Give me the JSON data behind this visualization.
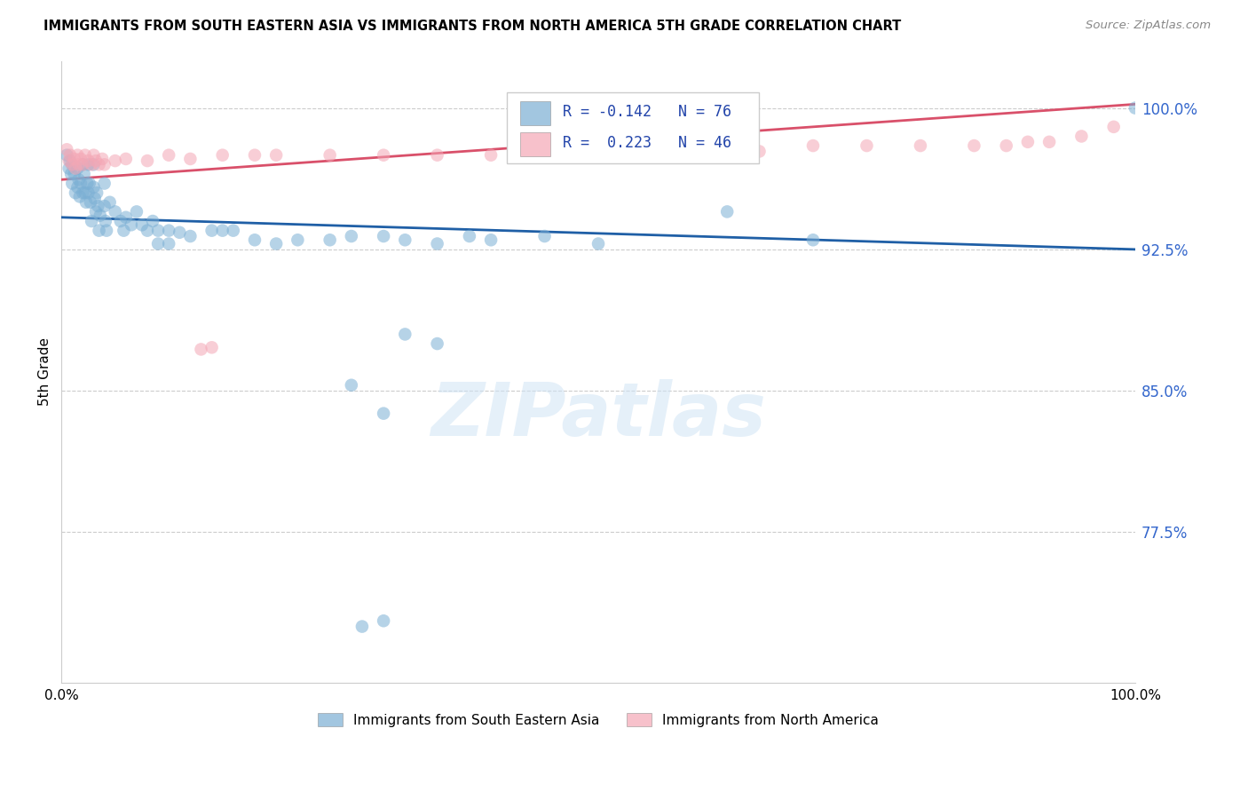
{
  "title": "IMMIGRANTS FROM SOUTH EASTERN ASIA VS IMMIGRANTS FROM NORTH AMERICA 5TH GRADE CORRELATION CHART",
  "source": "Source: ZipAtlas.com",
  "ylabel": "5th Grade",
  "ytick_labels": [
    "100.0%",
    "92.5%",
    "85.0%",
    "77.5%"
  ],
  "ytick_values": [
    1.0,
    0.925,
    0.85,
    0.775
  ],
  "xlim": [
    0.0,
    1.0
  ],
  "ylim": [
    0.695,
    1.025
  ],
  "legend_label1": "Immigrants from South Eastern Asia",
  "legend_label2": "Immigrants from North America",
  "R1": -0.142,
  "N1": 76,
  "R2": 0.223,
  "N2": 46,
  "color_blue": "#7BAFD4",
  "color_pink": "#F4A7B5",
  "color_line_blue": "#1F5FA6",
  "color_line_pink": "#D9506A",
  "watermark_text": "ZIPatlas",
  "blue_trendline": [
    0.0,
    0.942,
    1.0,
    0.925
  ],
  "pink_trendline": [
    0.0,
    0.962,
    1.0,
    1.002
  ],
  "blue_x": [
    0.005,
    0.007,
    0.008,
    0.009,
    0.01,
    0.01,
    0.012,
    0.013,
    0.015,
    0.015,
    0.016,
    0.017,
    0.018,
    0.02,
    0.02,
    0.021,
    0.022,
    0.023,
    0.024,
    0.025,
    0.025,
    0.026,
    0.027,
    0.028,
    0.03,
    0.03,
    0.031,
    0.032,
    0.033,
    0.034,
    0.035,
    0.036,
    0.04,
    0.04,
    0.041,
    0.042,
    0.045,
    0.05,
    0.055,
    0.058,
    0.06,
    0.065,
    0.07,
    0.075,
    0.08,
    0.085,
    0.09,
    0.09,
    0.1,
    0.1,
    0.11,
    0.12,
    0.14,
    0.15,
    0.16,
    0.18,
    0.2,
    0.22,
    0.25,
    0.27,
    0.3,
    0.32,
    0.35,
    0.38,
    0.4,
    0.45,
    0.5,
    0.62,
    0.7,
    1.0,
    0.27,
    0.3,
    0.32,
    0.35,
    0.28,
    0.3
  ],
  "blue_y": [
    0.975,
    0.968,
    0.972,
    0.965,
    0.97,
    0.96,
    0.965,
    0.955,
    0.968,
    0.958,
    0.962,
    0.953,
    0.96,
    0.97,
    0.955,
    0.965,
    0.955,
    0.95,
    0.96,
    0.97,
    0.955,
    0.96,
    0.95,
    0.94,
    0.97,
    0.958,
    0.952,
    0.945,
    0.955,
    0.948,
    0.935,
    0.943,
    0.96,
    0.948,
    0.94,
    0.935,
    0.95,
    0.945,
    0.94,
    0.935,
    0.942,
    0.938,
    0.945,
    0.938,
    0.935,
    0.94,
    0.935,
    0.928,
    0.935,
    0.928,
    0.934,
    0.932,
    0.935,
    0.935,
    0.935,
    0.93,
    0.928,
    0.93,
    0.93,
    0.932,
    0.932,
    0.93,
    0.928,
    0.932,
    0.93,
    0.932,
    0.928,
    0.945,
    0.93,
    1.0,
    0.853,
    0.838,
    0.88,
    0.875,
    0.725,
    0.728
  ],
  "pink_x": [
    0.005,
    0.007,
    0.008,
    0.01,
    0.012,
    0.013,
    0.015,
    0.016,
    0.018,
    0.02,
    0.022,
    0.025,
    0.028,
    0.03,
    0.032,
    0.035,
    0.038,
    0.04,
    0.05,
    0.06,
    0.08,
    0.1,
    0.12,
    0.15,
    0.18,
    0.2,
    0.25,
    0.3,
    0.35,
    0.4,
    0.45,
    0.5,
    0.55,
    0.6,
    0.65,
    0.7,
    0.75,
    0.8,
    0.85,
    0.88,
    0.9,
    0.92,
    0.95,
    0.98,
    0.14,
    0.13
  ],
  "pink_y": [
    0.978,
    0.972,
    0.975,
    0.97,
    0.973,
    0.968,
    0.975,
    0.97,
    0.973,
    0.97,
    0.975,
    0.972,
    0.97,
    0.975,
    0.972,
    0.97,
    0.973,
    0.97,
    0.972,
    0.973,
    0.972,
    0.975,
    0.973,
    0.975,
    0.975,
    0.975,
    0.975,
    0.975,
    0.975,
    0.975,
    0.975,
    0.977,
    0.977,
    0.977,
    0.977,
    0.98,
    0.98,
    0.98,
    0.98,
    0.98,
    0.982,
    0.982,
    0.985,
    0.99,
    0.873,
    0.872
  ]
}
